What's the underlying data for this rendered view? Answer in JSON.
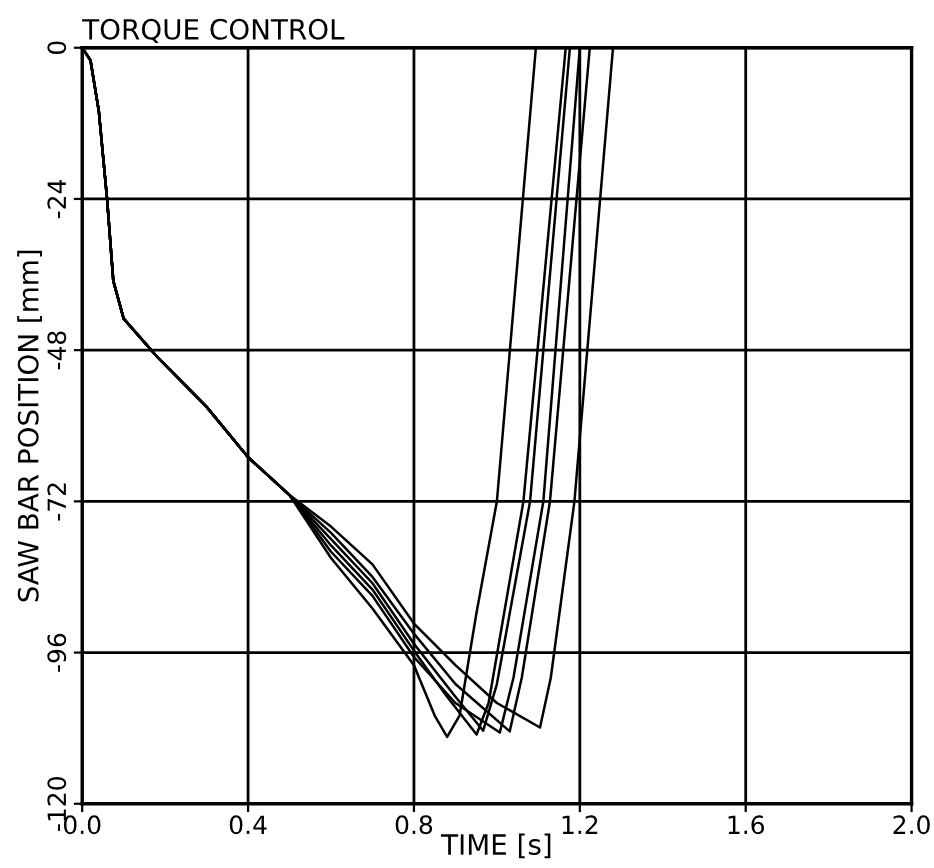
{
  "chart_data": {
    "type": "line",
    "title": "TORQUE CONTROL",
    "xlabel": "TIME [s]",
    "ylabel": "SAW BAR POSITION [mm]",
    "xlim": [
      0,
      2
    ],
    "ylim": [
      -120,
      0
    ],
    "xticks": [
      {
        "value": 0,
        "label": "0.0"
      },
      0.4,
      0.8,
      1.2,
      1.6,
      {
        "value": 2,
        "label": "2.0"
      }
    ],
    "yticks": [
      0,
      -24,
      -48,
      -72,
      -96,
      -120
    ],
    "grid": true,
    "legend": false,
    "series": [
      {
        "color": "#000000",
        "x": [
          0,
          0.02,
          0.04,
          0.06,
          0.075,
          0.1,
          0.18,
          0.3,
          0.4,
          0.5,
          0.6,
          0.7,
          0.8,
          0.85,
          0.88,
          0.91,
          0.95,
          1.0,
          1.094
        ],
        "values": [
          0,
          -2,
          -10,
          -24,
          -37,
          -43,
          -49,
          -57,
          -65,
          -71,
          -81,
          -89,
          -98,
          -106,
          -109.4,
          -106,
          -90,
          -72,
          0
        ]
      },
      {
        "color": "#000000",
        "x": [
          0,
          0.02,
          0.04,
          0.06,
          0.075,
          0.1,
          0.18,
          0.3,
          0.4,
          0.5,
          0.6,
          0.7,
          0.8,
          0.88,
          0.951,
          0.98,
          1.064,
          1.166
        ],
        "values": [
          0,
          -2,
          -10,
          -24,
          -37,
          -43,
          -49,
          -57,
          -65,
          -71,
          -79,
          -86,
          -95.7,
          -103,
          -109,
          -104,
          -72,
          0
        ]
      },
      {
        "color": "#000000",
        "x": [
          0,
          0.02,
          0.04,
          0.06,
          0.075,
          0.1,
          0.18,
          0.3,
          0.4,
          0.5,
          0.6,
          0.7,
          0.8,
          0.9,
          0.967,
          1.0,
          1.08,
          1.176
        ],
        "values": [
          0,
          -2,
          -10,
          -24,
          -37,
          -43,
          -49,
          -57,
          -65,
          -71,
          -78,
          -85,
          -94.6,
          -103,
          -108.4,
          -101,
          -72,
          0
        ]
      },
      {
        "color": "#000000",
        "x": [
          0,
          0.02,
          0.04,
          0.06,
          0.075,
          0.1,
          0.18,
          0.3,
          0.4,
          0.5,
          0.6,
          0.7,
          0.8,
          0.9,
          1.007,
          1.04,
          1.112,
          1.2
        ],
        "values": [
          0,
          -2,
          -10,
          -24,
          -37,
          -43,
          -49,
          -57,
          -65,
          -71,
          -80,
          -87,
          -96.7,
          -104,
          -108.7,
          -100,
          -72,
          0
        ]
      },
      {
        "color": "#000000",
        "x": [
          0,
          0.02,
          0.04,
          0.06,
          0.075,
          0.1,
          0.18,
          0.3,
          0.4,
          0.5,
          0.6,
          0.7,
          0.8,
          0.9,
          1.031,
          1.06,
          1.128,
          1.224
        ],
        "values": [
          0,
          -2,
          -10,
          -24,
          -37,
          -43,
          -49,
          -57,
          -65,
          -71,
          -77,
          -84,
          -93,
          -101,
          -108.5,
          -100,
          -72,
          0
        ]
      },
      {
        "color": "#000000",
        "x": [
          0,
          0.02,
          0.04,
          0.06,
          0.075,
          0.1,
          0.18,
          0.3,
          0.4,
          0.5,
          0.6,
          0.7,
          0.8,
          0.9,
          1.0,
          1.104,
          1.13,
          1.187,
          1.28
        ],
        "values": [
          0,
          -2,
          -10,
          -24,
          -37,
          -43,
          -49,
          -57,
          -65,
          -71,
          -76,
          -82,
          -91.4,
          -98,
          -104,
          -107.9,
          -100,
          -72,
          0
        ]
      }
    ]
  }
}
